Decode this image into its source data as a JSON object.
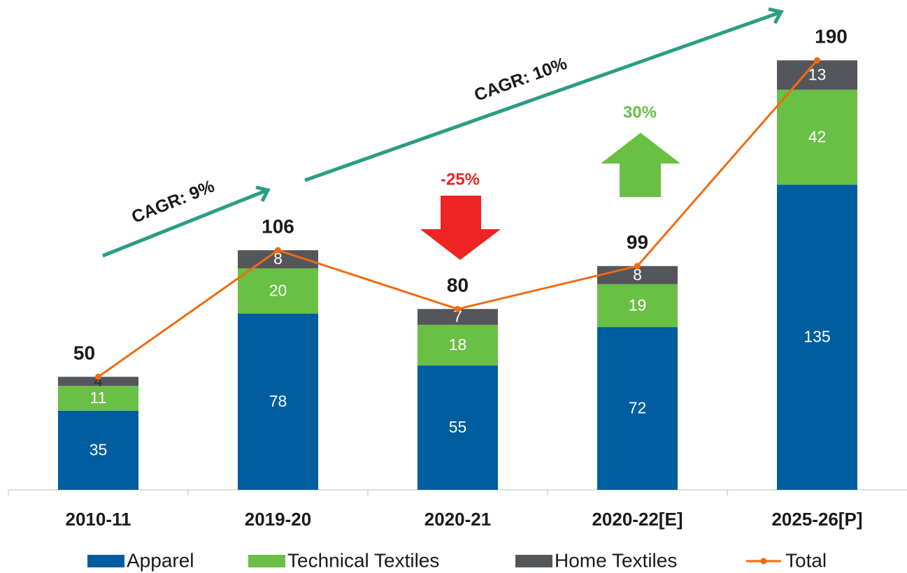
{
  "chart_data": {
    "type": "bar",
    "stacked": true,
    "categories": [
      "2010-11",
      "2019-20",
      "2020-21",
      "2020-22[E]",
      "2025-26[P]"
    ],
    "series": [
      {
        "name": "Apparel",
        "color": "#005da0",
        "values": [
          35,
          78,
          55,
          72,
          135
        ]
      },
      {
        "name": "Technical Textiles",
        "color": "#6abf45",
        "values": [
          11,
          20,
          18,
          19,
          42
        ]
      },
      {
        "name": "Home Textiles",
        "color": "#54565b",
        "values": [
          4,
          8,
          7,
          8,
          13
        ]
      },
      {
        "name": "Total",
        "type": "line",
        "color": "#f26a10",
        "values": [
          50,
          106,
          80,
          99,
          190
        ]
      }
    ],
    "ylim": [
      0,
      200
    ],
    "annotations": [
      {
        "text": "CAGR: 9%",
        "color": "#1a1a1a"
      },
      {
        "text": "CAGR: 10%",
        "color": "#1a1a1a"
      },
      {
        "text": "-25%",
        "color": "#ee2424"
      },
      {
        "text": "30%",
        "color": "#6abf45"
      }
    ]
  }
}
